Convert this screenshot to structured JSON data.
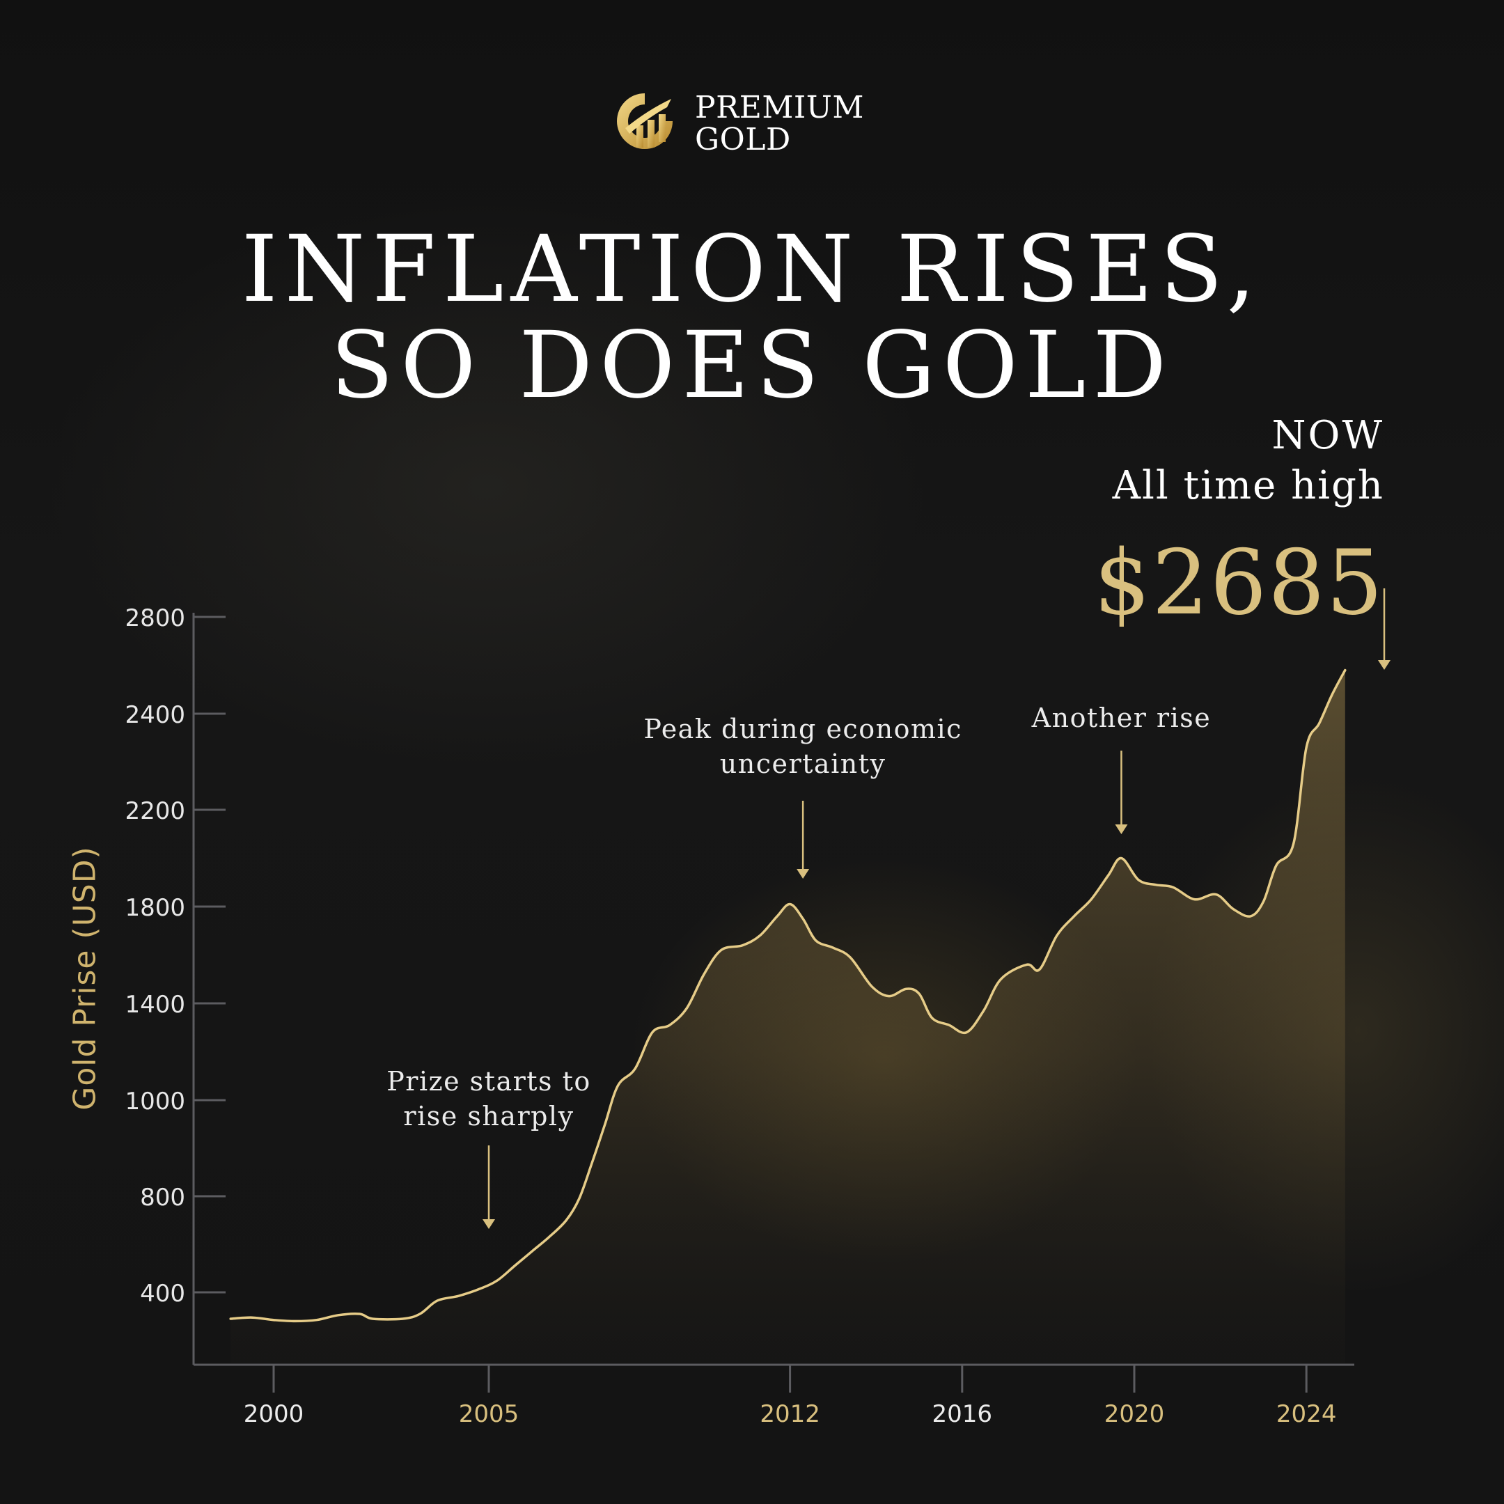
{
  "brand": {
    "line1": "PREMIUM",
    "line2": "GOLD"
  },
  "headline": {
    "line1": "INFLATION RISES,",
    "line2": "SO DOES GOLD"
  },
  "callout": {
    "now": "NOW",
    "label": "All time high",
    "price": "$2685"
  },
  "colors": {
    "gold": "#d9c07f",
    "gold_line": "#e6cc88",
    "axis": "#5c5c60",
    "text": "#ffffff"
  },
  "chart_data": {
    "type": "area",
    "ylabel": "Gold Prise (USD)",
    "xlabel": "",
    "y_ticks": [
      400,
      800,
      1000,
      1400,
      1800,
      2200,
      2400,
      2800
    ],
    "x_ticks": [
      {
        "label": "2000",
        "value": 2000,
        "highlight": false
      },
      {
        "label": "2005",
        "value": 2005,
        "highlight": true
      },
      {
        "label": "2012",
        "value": 2012,
        "highlight": true
      },
      {
        "label": "2016",
        "value": 2016,
        "highlight": false
      },
      {
        "label": "2020",
        "value": 2020,
        "highlight": true
      },
      {
        "label": "2024",
        "value": 2024,
        "highlight": true
      }
    ],
    "series": [
      {
        "points": [
          [
            1999.0,
            290
          ],
          [
            1999.5,
            295
          ],
          [
            2000.0,
            285
          ],
          [
            2000.5,
            280
          ],
          [
            2001.0,
            285
          ],
          [
            2001.5,
            305
          ],
          [
            2002.0,
            310
          ],
          [
            2002.3,
            290
          ],
          [
            2003.0,
            290
          ],
          [
            2003.4,
            310
          ],
          [
            2003.8,
            365
          ],
          [
            2004.3,
            385
          ],
          [
            2004.8,
            415
          ],
          [
            2005.2,
            450
          ],
          [
            2005.6,
            510
          ],
          [
            2006.0,
            570
          ],
          [
            2006.4,
            630
          ],
          [
            2006.8,
            700
          ],
          [
            2007.1,
            790
          ],
          [
            2007.4,
            870
          ],
          [
            2007.7,
            950
          ],
          [
            2008.0,
            1060
          ],
          [
            2008.4,
            1130
          ],
          [
            2008.8,
            1280
          ],
          [
            2009.2,
            1310
          ],
          [
            2009.6,
            1380
          ],
          [
            2010.0,
            1520
          ],
          [
            2010.4,
            1620
          ],
          [
            2010.9,
            1640
          ],
          [
            2011.3,
            1680
          ],
          [
            2011.7,
            1760
          ],
          [
            2012.0,
            1810
          ],
          [
            2012.3,
            1750
          ],
          [
            2012.6,
            1660
          ],
          [
            2013.0,
            1630
          ],
          [
            2013.4,
            1590
          ],
          [
            2013.9,
            1470
          ],
          [
            2014.3,
            1430
          ],
          [
            2014.7,
            1460
          ],
          [
            2015.0,
            1440
          ],
          [
            2015.3,
            1340
          ],
          [
            2015.7,
            1310
          ],
          [
            2016.1,
            1280
          ],
          [
            2016.5,
            1370
          ],
          [
            2016.9,
            1500
          ],
          [
            2017.5,
            1560
          ],
          [
            2017.8,
            1540
          ],
          [
            2018.2,
            1680
          ],
          [
            2018.6,
            1760
          ],
          [
            2019.0,
            1830
          ],
          [
            2019.4,
            1930
          ],
          [
            2019.7,
            2000
          ],
          [
            2020.1,
            1910
          ],
          [
            2020.5,
            1890
          ],
          [
            2020.9,
            1880
          ],
          [
            2021.4,
            1830
          ],
          [
            2021.9,
            1850
          ],
          [
            2022.3,
            1790
          ],
          [
            2022.7,
            1760
          ],
          [
            2023.0,
            1820
          ],
          [
            2023.3,
            1970
          ],
          [
            2023.7,
            2060
          ],
          [
            2024.0,
            2330
          ],
          [
            2024.3,
            2380
          ],
          [
            2024.6,
            2480
          ],
          [
            2024.9,
            2580
          ]
        ]
      }
    ],
    "annotations": [
      {
        "lines": [
          "Prize starts to",
          "rise sharply"
        ],
        "x": 2005.0,
        "value": 800
      },
      {
        "lines": [
          "Peak during economic",
          "uncertainty"
        ],
        "x": 2012.3,
        "value": 1810
      },
      {
        "lines": [
          "Another rise"
        ],
        "x": 2019.7,
        "value": 2000
      },
      {
        "lines": [],
        "x": 2024.9,
        "value": 2580
      }
    ]
  }
}
